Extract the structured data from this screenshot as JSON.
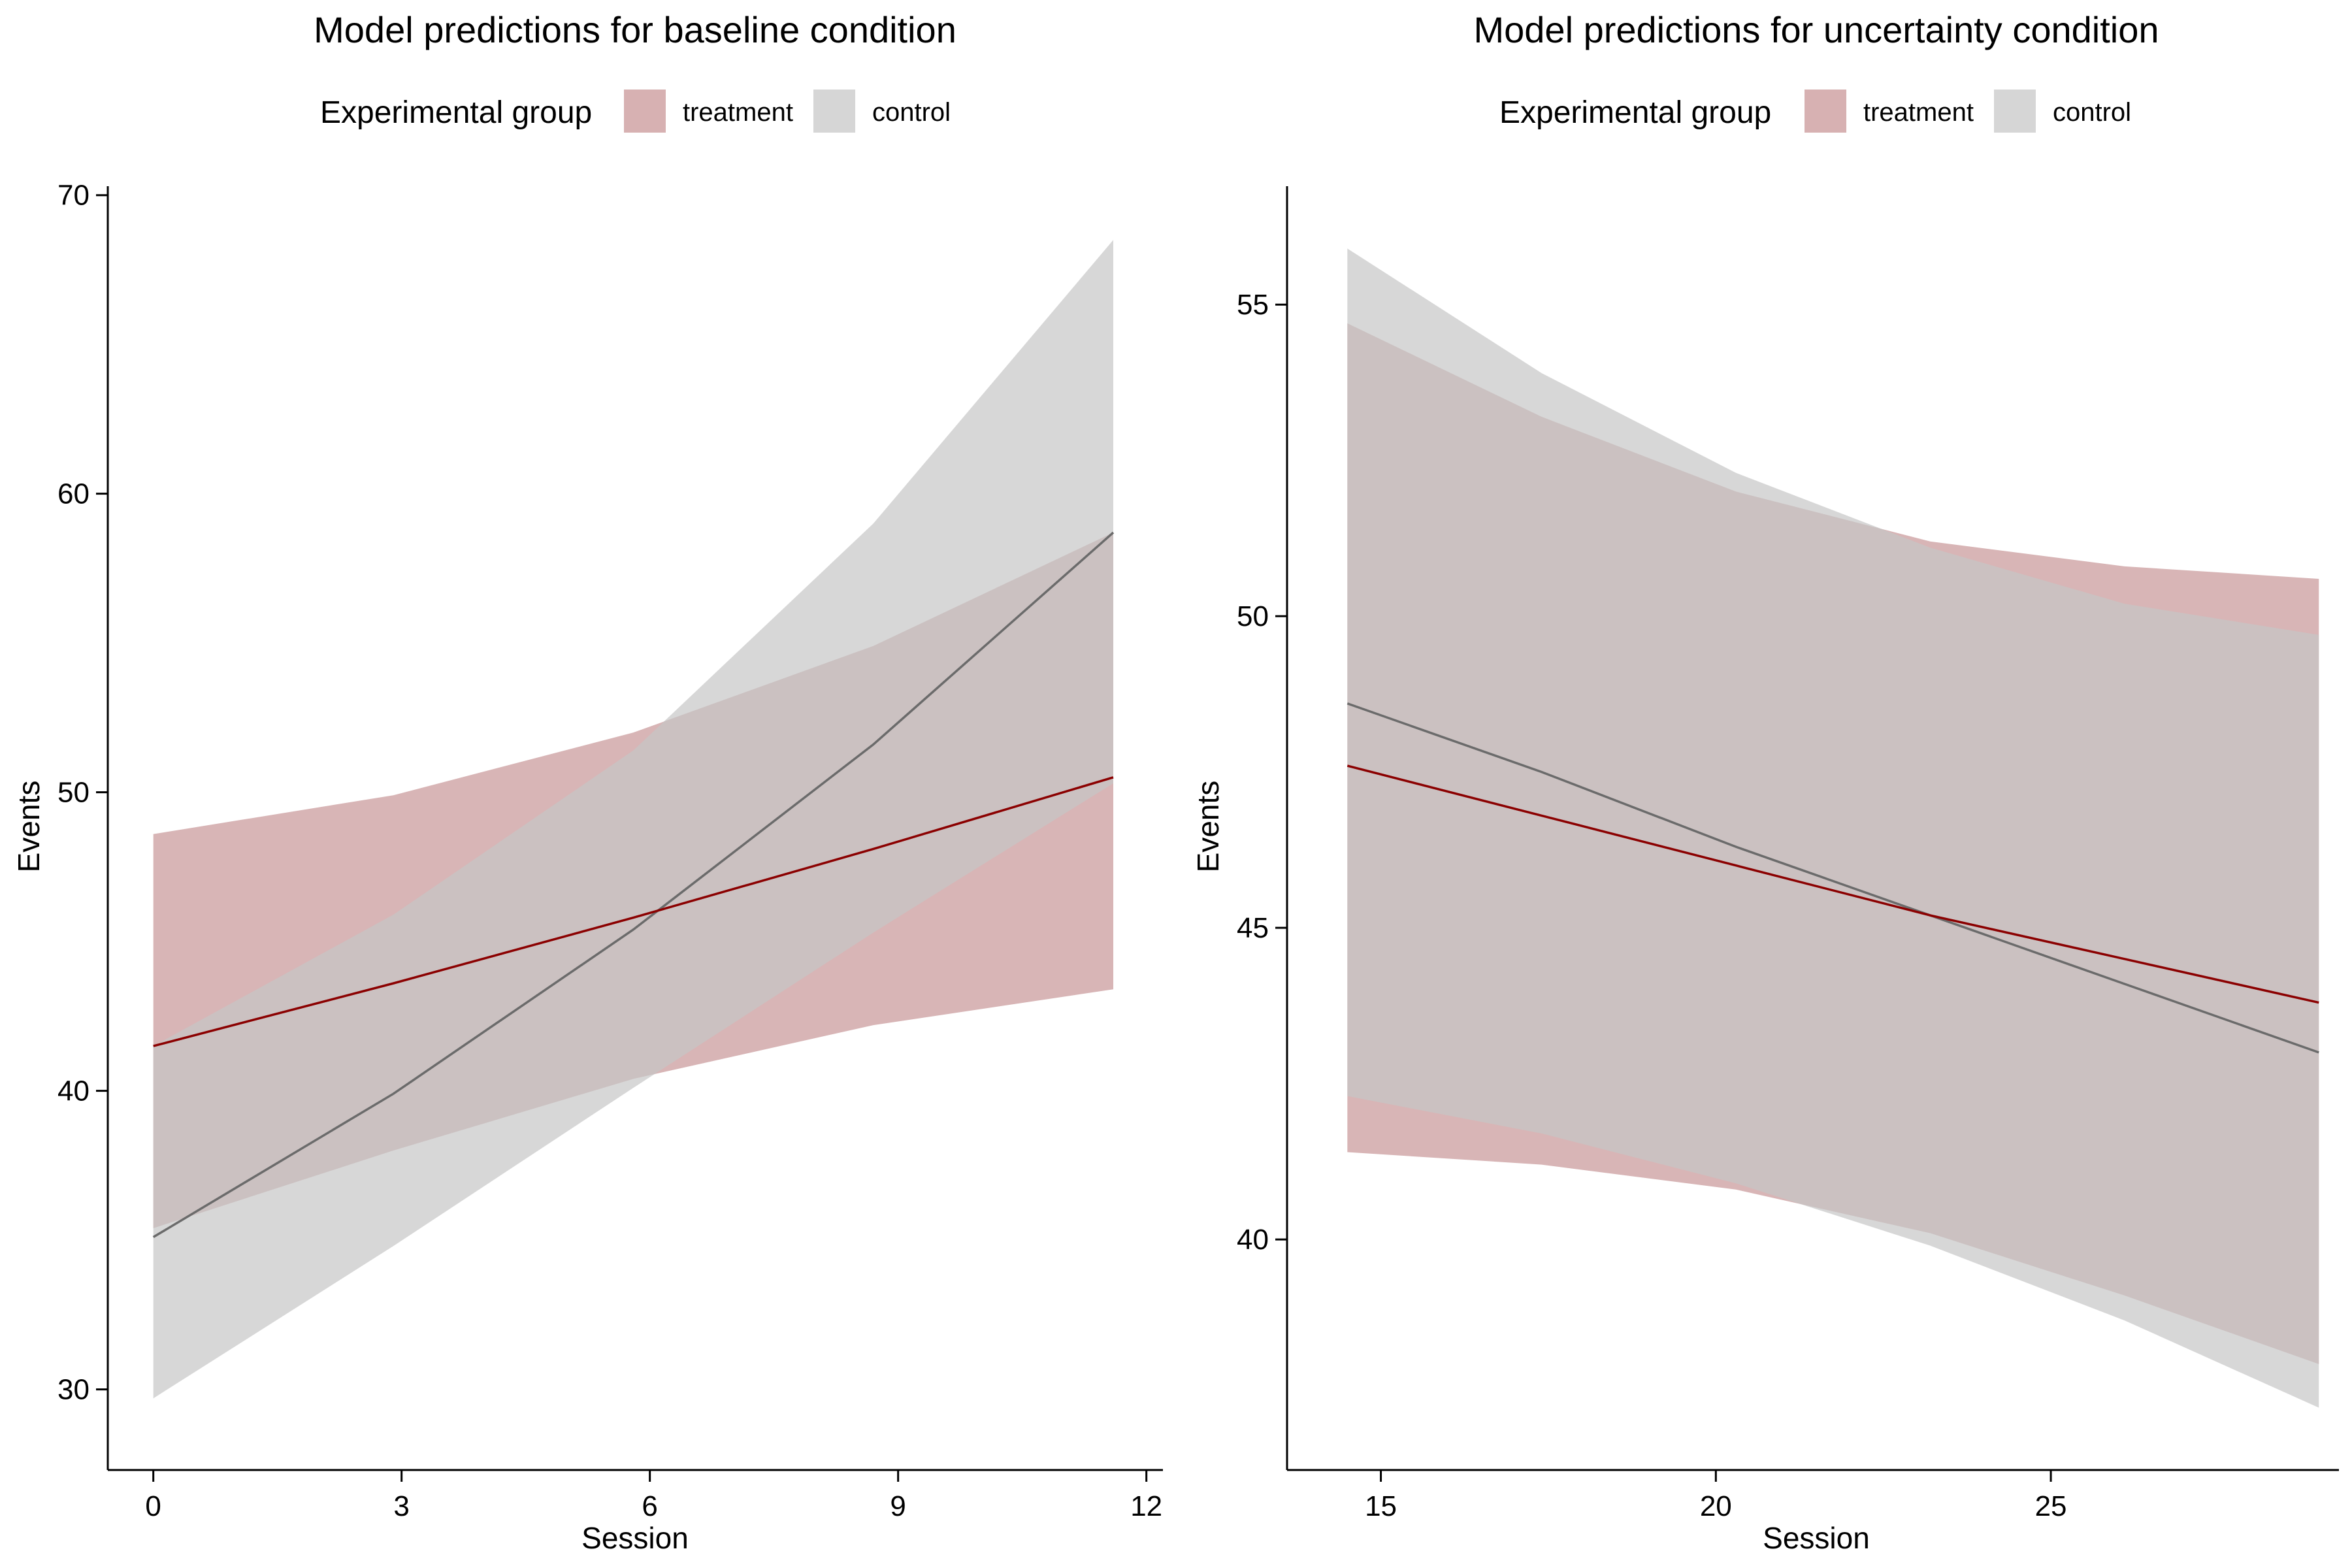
{
  "legend": {
    "title": "Experimental group",
    "items": [
      {
        "label": "treatment",
        "color": "#d7b1b2"
      },
      {
        "label": "control",
        "color": "#d6d6d6"
      }
    ]
  },
  "colors": {
    "treatment_line": "#8b0000",
    "control_line": "#6b6b6b",
    "treatment_band": "#c38d8f",
    "control_band": "#c6c6c6",
    "overlap_band": "#bca0a1"
  },
  "chart_data": [
    {
      "type": "line",
      "title": "Model predictions for baseline condition",
      "xlabel": "Session",
      "ylabel": "Events",
      "xlim": [
        -0.55,
        12.2
      ],
      "ylim": [
        27.3,
        70.3
      ],
      "xticks": [
        0,
        3,
        6,
        9,
        12
      ],
      "yticks": [
        30,
        40,
        50,
        60,
        70
      ],
      "grid": false,
      "legend_position": "top",
      "series": [
        {
          "name": "treatment",
          "x": [
            0,
            2.9,
            5.8,
            8.7,
            11.6
          ],
          "y": [
            41.5,
            43.6,
            45.8,
            48.1,
            50.5
          ],
          "lower": [
            35.4,
            38.0,
            40.4,
            42.2,
            43.4
          ],
          "upper": [
            48.6,
            49.9,
            52.0,
            54.9,
            58.7
          ]
        },
        {
          "name": "control",
          "x": [
            0,
            2.9,
            5.8,
            8.7,
            11.6
          ],
          "y": [
            35.1,
            39.9,
            45.4,
            51.6,
            58.7
          ],
          "lower": [
            29.7,
            34.8,
            40.1,
            45.3,
            50.3
          ],
          "upper": [
            41.5,
            45.9,
            51.4,
            59.0,
            68.5
          ]
        }
      ]
    },
    {
      "type": "line",
      "title": "Model predictions for uncertainty condition",
      "xlabel": "Session",
      "ylabel": "Events",
      "xlim": [
        13.6,
        29.3
      ],
      "ylim": [
        36.3,
        56.9
      ],
      "xticks": [
        15,
        20,
        25
      ],
      "yticks": [
        40,
        45,
        50,
        55
      ],
      "grid": false,
      "legend_position": "top",
      "series": [
        {
          "name": "treatment",
          "x": [
            14.5,
            17.4,
            20.3,
            23.2,
            26.1,
            29.0
          ],
          "y": [
            47.6,
            46.8,
            46.0,
            45.2,
            44.5,
            43.8
          ],
          "lower": [
            41.4,
            41.2,
            40.8,
            40.1,
            39.1,
            38.0
          ],
          "upper": [
            54.7,
            53.2,
            52.0,
            51.2,
            50.8,
            50.6
          ]
        },
        {
          "name": "control",
          "x": [
            14.5,
            17.4,
            20.3,
            23.2,
            26.1,
            29.0
          ],
          "y": [
            48.6,
            47.5,
            46.3,
            45.2,
            44.1,
            43.0
          ],
          "lower": [
            42.3,
            41.7,
            40.9,
            39.9,
            38.7,
            37.3
          ],
          "upper": [
            55.9,
            53.9,
            52.3,
            51.1,
            50.2,
            49.7
          ]
        }
      ]
    }
  ]
}
